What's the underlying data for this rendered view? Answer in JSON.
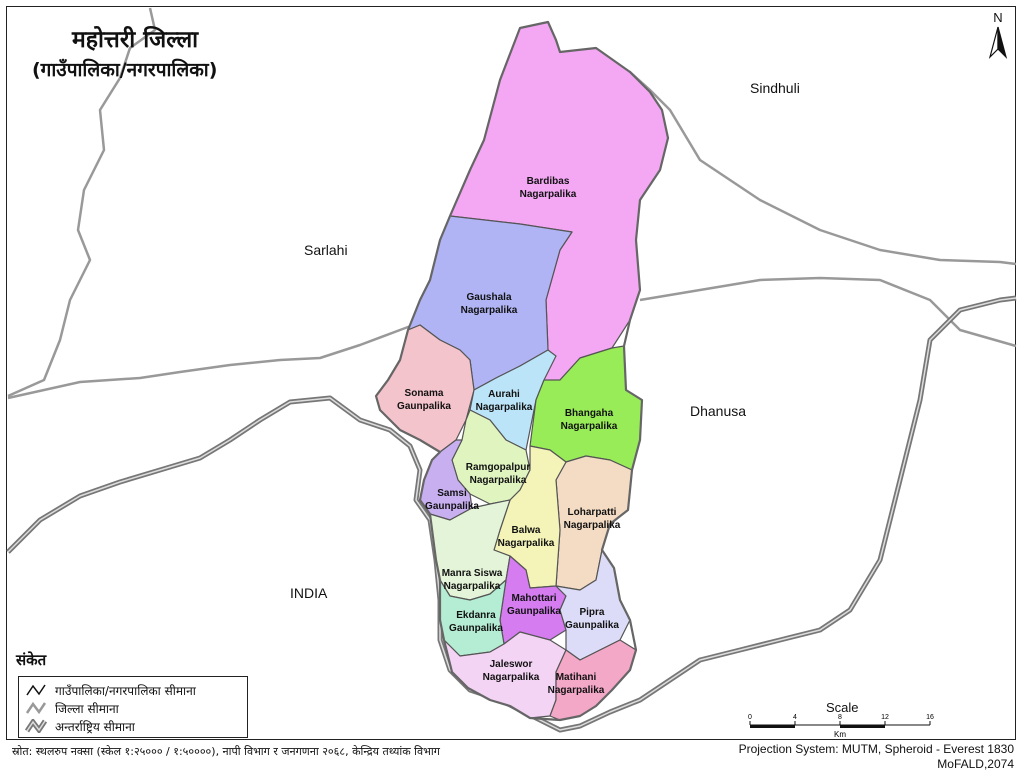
{
  "title": "महोत्तरी जिल्ला",
  "subtitle": "(गाउँपालिका/नगरपालिका)",
  "north_label": "N",
  "neighbors": [
    "Sindhuli",
    "Sarlahi",
    "Dhanusa",
    "INDIA"
  ],
  "municipalities": [
    {
      "line1": "Bardibas",
      "line2": "Nagarpalika",
      "color": "#f4a8f4"
    },
    {
      "line1": "Gaushala",
      "line2": "Nagarpalika",
      "color": "#b0b4f4"
    },
    {
      "line1": "Sonama",
      "line2": "Gaunpalika",
      "color": "#f4c4cc"
    },
    {
      "line1": "Aurahi",
      "line2": "Nagarpalika",
      "color": "#bce4f8"
    },
    {
      "line1": "Bhangaha",
      "line2": "Nagarpalika",
      "color": "#98ec58"
    },
    {
      "line1": "Ramgopalpur",
      "line2": "Nagarpalika",
      "color": "#e0f4c0"
    },
    {
      "line1": "Samsi",
      "line2": "Gaunpalika",
      "color": "#c8b0f0"
    },
    {
      "line1": "Loharpatti",
      "line2": "Nagarpalika",
      "color": "#f4dcc4"
    },
    {
      "line1": "Balwa",
      "line2": "Nagarpalika",
      "color": "#f4f4b8"
    },
    {
      "line1": "Manra Siswa",
      "line2": "Nagarpalika",
      "color": "#e4f4d8"
    },
    {
      "line1": "Mahottari",
      "line2": "Gaunpalika",
      "color": "#d47cf0"
    },
    {
      "line1": "Ekdanra",
      "line2": "Gaunpalika",
      "color": "#b4ecd4"
    },
    {
      "line1": "Pipra",
      "line2": "Gaunpalika",
      "color": "#dcdcf8"
    },
    {
      "line1": "Jaleswor",
      "line2": "Nagarpalika",
      "color": "#f4d4f4"
    },
    {
      "line1": "Matihani",
      "line2": "Nagarpalika",
      "color": "#f4a8c8"
    }
  ],
  "legend": {
    "title": "संकेत",
    "items": [
      "गाउँपालिका/नगरपालिका सीमाना",
      "जिल्ला सीमाना",
      "अन्तर्राष्ट्रिय सीमाना"
    ]
  },
  "scale": {
    "title": "Scale",
    "ticks": [
      "0",
      "4",
      "8",
      "12",
      "16"
    ],
    "unit": "Km"
  },
  "footer": {
    "source": "स्रोत: स्थलरुप नक्सा (स्केल १:२५००० / १:५००००), नापी विभाग र जनगणना २०६८, केन्द्रिय तथ्यांक विभाग",
    "projection": "Projection System: MUTM, Spheroid - Everest 1830",
    "credit": "MoFALD,2074"
  },
  "colors": {
    "district_border": "#888888",
    "intl_border": "#777777",
    "muni_border": "#555555"
  }
}
